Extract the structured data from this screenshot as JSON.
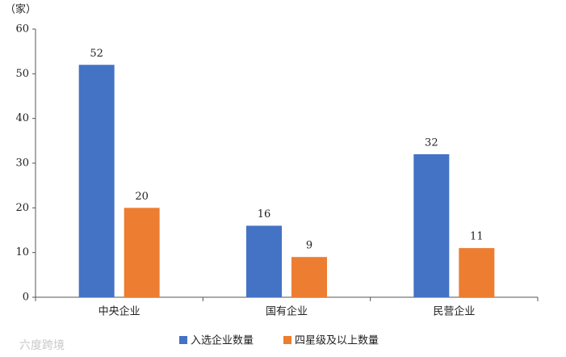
{
  "chart_data": {
    "type": "bar",
    "y_label": "（家）",
    "categories": [
      "中央企业",
      "国有企业",
      "民营企业"
    ],
    "series": [
      {
        "name": "入选企业数量",
        "color": "#4472c4",
        "values": [
          52,
          16,
          32
        ]
      },
      {
        "name": "四星级及以上数量",
        "color": "#ed7d31",
        "values": [
          20,
          9,
          11
        ]
      }
    ],
    "ylim": [
      0,
      60
    ],
    "yticks": [
      0,
      10,
      20,
      30,
      40,
      50,
      60
    ],
    "grid": false,
    "legend": "bottom",
    "watermark": "六度跨境"
  }
}
